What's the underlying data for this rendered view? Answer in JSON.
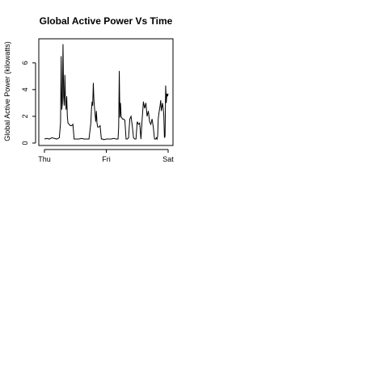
{
  "chart_data": {
    "type": "line",
    "title": "Global Active Power Vs Time",
    "xlabel": "",
    "ylabel": "Global Active Power (kilowatts)",
    "x_ticks": [
      "Thu",
      "Fri",
      "Sat"
    ],
    "y_ticks": [
      "0",
      "2",
      "4",
      "6"
    ],
    "xlim": [
      0,
      2
    ],
    "ylim": [
      0,
      7.5
    ],
    "line_color": "#000000",
    "series": [
      {
        "x": [
          0.0,
          0.04,
          0.08,
          0.12,
          0.16,
          0.2,
          0.24,
          0.26,
          0.27,
          0.28,
          0.29,
          0.3,
          0.31,
          0.32,
          0.33,
          0.34,
          0.35,
          0.36,
          0.37,
          0.38,
          0.4,
          0.42,
          0.44,
          0.46,
          0.48,
          0.52,
          0.56,
          0.6,
          0.64,
          0.68,
          0.72,
          0.75,
          0.76,
          0.77,
          0.78,
          0.79,
          0.8,
          0.81,
          0.82,
          0.83,
          0.84,
          0.85,
          0.86,
          0.88,
          0.9,
          0.92,
          0.94,
          0.96,
          1.0,
          1.04,
          1.08,
          1.12,
          1.16,
          1.19,
          1.2,
          1.21,
          1.22,
          1.23,
          1.24,
          1.26,
          1.28,
          1.3,
          1.32,
          1.34,
          1.36,
          1.38,
          1.4,
          1.42,
          1.44,
          1.46,
          1.48,
          1.5,
          1.52,
          1.54,
          1.56,
          1.58,
          1.6,
          1.62,
          1.64,
          1.66,
          1.68,
          1.7,
          1.72,
          1.74,
          1.76,
          1.78,
          1.8,
          1.81,
          1.82,
          1.83,
          1.84,
          1.85,
          1.86,
          1.87,
          1.88,
          1.89,
          1.9,
          1.91,
          1.92,
          1.93,
          1.94,
          1.95,
          1.96,
          1.97,
          1.98,
          1.99,
          2.0
        ],
        "values": [
          0.3,
          0.35,
          0.3,
          0.4,
          0.35,
          0.3,
          0.4,
          1.5,
          6.5,
          2.5,
          3.0,
          7.4,
          3.5,
          2.8,
          5.1,
          3.2,
          2.5,
          3.5,
          2.0,
          1.5,
          1.4,
          1.3,
          1.3,
          1.4,
          0.3,
          0.3,
          0.3,
          0.35,
          0.3,
          0.3,
          0.3,
          1.5,
          2.5,
          3.1,
          2.8,
          4.5,
          3.2,
          2.6,
          2.1,
          1.6,
          2.4,
          1.5,
          1.2,
          1.2,
          1.3,
          0.3,
          0.3,
          0.25,
          0.3,
          0.3,
          0.3,
          0.35,
          0.3,
          0.3,
          1.2,
          5.4,
          1.9,
          3.0,
          2.0,
          1.8,
          1.8,
          1.7,
          0.3,
          0.3,
          0.4,
          1.8,
          2.0,
          1.3,
          0.4,
          0.3,
          0.3,
          1.6,
          1.4,
          1.5,
          0.3,
          1.8,
          3.1,
          2.6,
          3.0,
          2.0,
          2.4,
          1.6,
          1.4,
          1.8,
          1.2,
          0.3,
          0.3,
          0.4,
          0.3,
          0.5,
          1.8,
          2.2,
          2.5,
          2.8,
          3.2,
          2.4,
          2.7,
          3.0,
          2.6,
          2.1,
          0.4,
          0.5,
          4.3,
          3.0,
          3.7,
          3.5,
          3.7
        ]
      }
    ]
  }
}
